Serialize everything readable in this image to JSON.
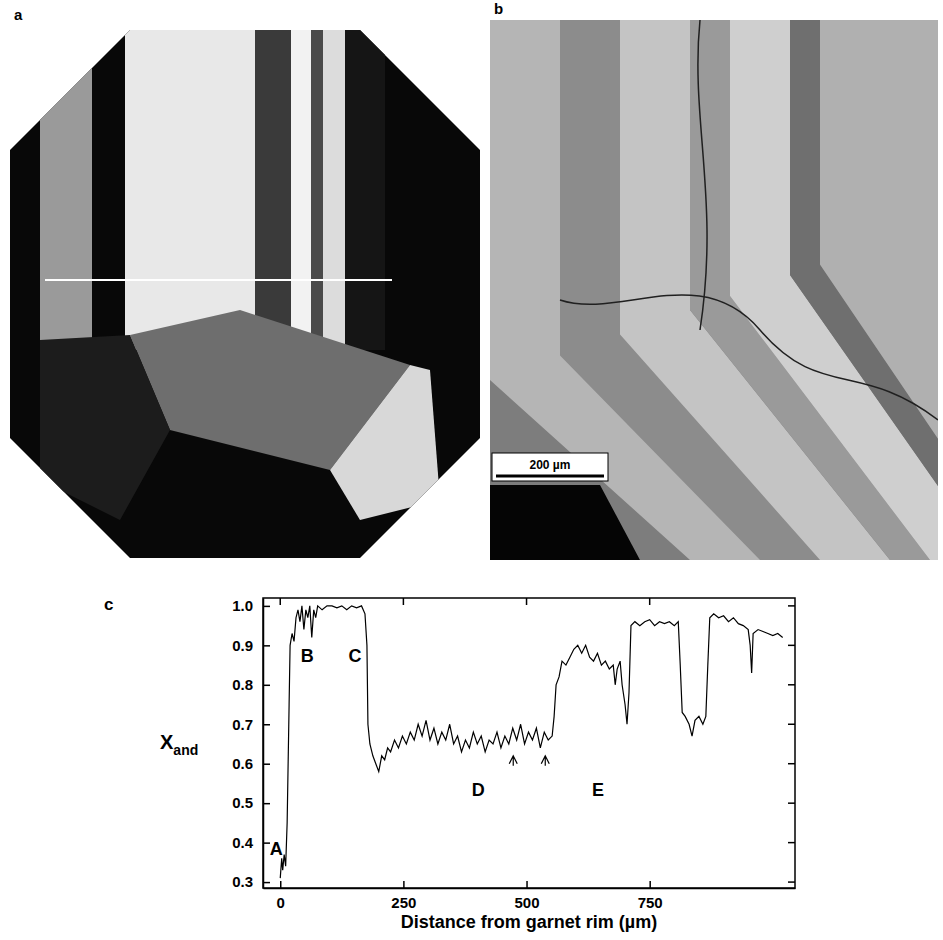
{
  "panels": [
    {
      "letter": "a"
    },
    {
      "letter": "b",
      "scale_bar": "200 µm"
    }
  ],
  "chart_data": {
    "type": "line",
    "letter": "c",
    "xlabel": "Distance from garnet rim (µm)",
    "ylabel": {
      "text": "X",
      "subscript": "and"
    },
    "xlim": [
      -35,
      1045
    ],
    "ylim": [
      0.285,
      1.02
    ],
    "xticks": [
      0,
      250,
      500,
      750
    ],
    "yticks": [
      0.3,
      0.4,
      0.5,
      0.6,
      0.7,
      0.8,
      0.9,
      {
        "value": 1,
        "label": "1.0"
      }
    ],
    "color": "#000000",
    "line_style": "solid",
    "x": [
      0,
      3,
      5,
      8,
      11,
      14,
      16,
      18,
      20,
      24,
      28,
      32,
      36,
      40,
      44,
      48,
      52,
      56,
      60,
      64,
      68,
      72,
      76,
      85,
      95,
      105,
      115,
      125,
      135,
      145,
      155,
      165,
      172,
      176,
      178,
      182,
      188,
      194,
      200,
      206,
      212,
      218,
      224,
      232,
      240,
      248,
      256,
      264,
      272,
      280,
      288,
      296,
      304,
      312,
      320,
      328,
      336,
      344,
      352,
      360,
      368,
      376,
      384,
      392,
      400,
      408,
      416,
      424,
      432,
      440,
      448,
      456,
      464,
      472,
      480,
      488,
      496,
      504,
      512,
      520,
      528,
      536,
      544,
      552,
      556,
      560,
      566,
      572,
      580,
      588,
      596,
      604,
      612,
      620,
      628,
      636,
      644,
      652,
      660,
      668,
      676,
      680,
      684,
      690,
      694,
      700,
      704,
      708,
      712,
      720,
      730,
      740,
      750,
      760,
      770,
      780,
      790,
      800,
      808,
      812,
      816,
      822,
      830,
      836,
      842,
      850,
      858,
      864,
      868,
      872,
      880,
      890,
      900,
      910,
      920,
      930,
      940,
      950,
      954,
      957,
      960,
      970,
      980,
      990,
      1000,
      1010,
      1020
    ],
    "values": [
      0.31,
      0.36,
      0.33,
      0.37,
      0.34,
      0.45,
      0.6,
      0.75,
      0.9,
      0.93,
      0.91,
      0.97,
      0.99,
      0.96,
      1.0,
      0.94,
      0.99,
      0.97,
      1.0,
      0.92,
      0.99,
      0.97,
      1.0,
      0.99,
      1.0,
      1.0,
      0.995,
      1.0,
      0.99,
      1.0,
      0.995,
      1.0,
      0.98,
      0.9,
      0.7,
      0.65,
      0.62,
      0.6,
      0.58,
      0.62,
      0.61,
      0.64,
      0.63,
      0.66,
      0.64,
      0.67,
      0.65,
      0.68,
      0.66,
      0.7,
      0.67,
      0.71,
      0.66,
      0.69,
      0.65,
      0.68,
      0.66,
      0.7,
      0.65,
      0.67,
      0.63,
      0.66,
      0.64,
      0.68,
      0.65,
      0.67,
      0.63,
      0.66,
      0.65,
      0.68,
      0.64,
      0.67,
      0.65,
      0.69,
      0.66,
      0.7,
      0.65,
      0.68,
      0.66,
      0.69,
      0.64,
      0.68,
      0.66,
      0.67,
      0.72,
      0.8,
      0.82,
      0.86,
      0.85,
      0.87,
      0.89,
      0.9,
      0.88,
      0.9,
      0.87,
      0.86,
      0.88,
      0.85,
      0.86,
      0.84,
      0.85,
      0.8,
      0.84,
      0.86,
      0.8,
      0.75,
      0.7,
      0.78,
      0.95,
      0.96,
      0.95,
      0.96,
      0.965,
      0.95,
      0.96,
      0.955,
      0.96,
      0.95,
      0.96,
      0.85,
      0.73,
      0.72,
      0.7,
      0.67,
      0.71,
      0.72,
      0.7,
      0.72,
      0.85,
      0.97,
      0.98,
      0.97,
      0.975,
      0.96,
      0.97,
      0.955,
      0.95,
      0.94,
      0.9,
      0.83,
      0.93,
      0.94,
      0.935,
      0.93,
      0.925,
      0.93,
      0.92
    ],
    "annotations": [
      {
        "text": "A",
        "x": -8,
        "y": 0.38
      },
      {
        "text": "B",
        "x": 55,
        "y": 0.87
      },
      {
        "text": "C",
        "x": 152,
        "y": 0.87
      },
      {
        "text": "D",
        "x": 402,
        "y": 0.53
      },
      {
        "text": "E",
        "x": 645,
        "y": 0.53
      }
    ],
    "arrows": [
      {
        "x": 473,
        "y": 0.62
      },
      {
        "x": 538,
        "y": 0.62
      }
    ]
  }
}
